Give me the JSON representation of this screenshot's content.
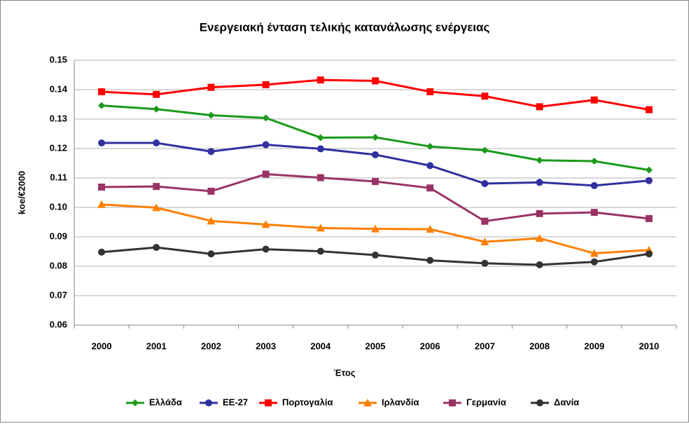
{
  "chart_data": {
    "type": "line",
    "title": "Ενεργειακή ένταση τελικής κατανάλωσης ενέργειας",
    "x_label": "Έτος",
    "y_label": "koe/€2000",
    "categories": [
      "2000",
      "2001",
      "2002",
      "2003",
      "2004",
      "2005",
      "2006",
      "2007",
      "2008",
      "2009",
      "2010"
    ],
    "ylim": [
      0.06,
      0.15
    ],
    "yticks": [
      {
        "value": 0.06,
        "label": "0.06"
      },
      {
        "value": 0.07,
        "label": "0.07"
      },
      {
        "value": 0.08,
        "label": "0.08"
      },
      {
        "value": 0.09,
        "label": "0.09"
      },
      {
        "value": 0.1,
        "label": "0.10"
      },
      {
        "value": 0.11,
        "label": "0.11"
      },
      {
        "value": 0.12,
        "label": "0.12"
      },
      {
        "value": 0.13,
        "label": "0.13"
      },
      {
        "value": 0.14,
        "label": "0.14"
      },
      {
        "value": 0.15,
        "label": "0.15"
      }
    ],
    "grid": true,
    "legend": "bottom",
    "series": [
      {
        "name": "Ελλάδα",
        "color": "#1a9a1a",
        "marker": "diamond",
        "values": [
          0.1346,
          0.1334,
          0.1313,
          0.1304,
          0.1237,
          0.1238,
          0.1207,
          0.1194,
          0.116,
          0.1157,
          0.1127
        ]
      },
      {
        "name": "ΕΕ-27",
        "color": "#3030a0",
        "marker": "circle",
        "values": [
          0.1219,
          0.1219,
          0.119,
          0.1213,
          0.1199,
          0.1179,
          0.1142,
          0.1081,
          0.1085,
          0.1074,
          0.1091
        ]
      },
      {
        "name": "Πορτογαλία",
        "color": "#ff0000",
        "marker": "square",
        "values": [
          0.1393,
          0.1384,
          0.1408,
          0.1417,
          0.1433,
          0.143,
          0.1393,
          0.1378,
          0.1342,
          0.1365,
          0.1332
        ]
      },
      {
        "name": "Ιρλανδία",
        "color": "#ff7f00",
        "marker": "triangle",
        "values": [
          0.101,
          0.0999,
          0.0954,
          0.0942,
          0.093,
          0.0927,
          0.0926,
          0.0883,
          0.0895,
          0.0844,
          0.0855
        ]
      },
      {
        "name": "Γερμανία",
        "color": "#993366",
        "marker": "square",
        "values": [
          0.1069,
          0.1071,
          0.1055,
          0.1113,
          0.1101,
          0.1088,
          0.1066,
          0.0953,
          0.0979,
          0.0983,
          0.0962
        ]
      },
      {
        "name": "Δανία",
        "color": "#333333",
        "marker": "circle",
        "values": [
          0.0848,
          0.0864,
          0.0842,
          0.0858,
          0.0851,
          0.0838,
          0.082,
          0.081,
          0.0805,
          0.0815,
          0.0842
        ]
      }
    ]
  }
}
